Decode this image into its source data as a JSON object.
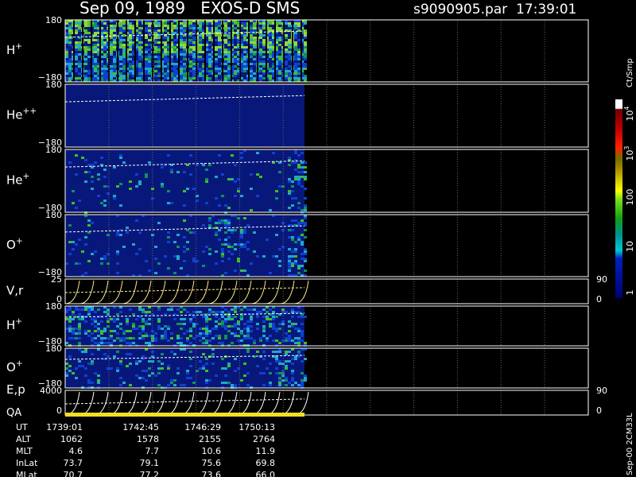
{
  "header": {
    "left": "Sep 09, 1989   EXOS-D SMS",
    "right": "s9090905.par  17:39:01"
  },
  "panels": [
    {
      "label": {
        "base": "H",
        "sup": "+"
      },
      "top": "180",
      "bottom": "−180"
    },
    {
      "label": {
        "base": "He",
        "sup": "++"
      },
      "top": "180",
      "bottom": "−180"
    },
    {
      "label": {
        "base": "He",
        "sup": "+"
      },
      "top": "180",
      "bottom": "−180"
    },
    {
      "label": {
        "base": "O",
        "sup": "+"
      },
      "top": "180",
      "bottom": "−180"
    },
    {
      "label": {
        "base": "V,r"
      },
      "top": "25",
      "bottom": "0",
      "right_top": "90",
      "right_bottom": "0"
    },
    {
      "label": {
        "base": "H",
        "sup": "+"
      },
      "top": "180",
      "bottom": "−180"
    },
    {
      "label": {
        "base": "O",
        "sup": "+"
      },
      "top": "180",
      "bottom": "−180"
    },
    {
      "label": {
        "base": "E,p"
      },
      "label2": "QA",
      "top": "4000",
      "bottom": "0",
      "right_top": "90",
      "right_bottom": "0"
    }
  ],
  "colorbar": {
    "unit": "Ct/Smp",
    "ticks": [
      {
        "base": "10",
        "sup": "4"
      },
      {
        "base": "10",
        "sup": "3"
      },
      {
        "base": "100"
      },
      {
        "base": "10"
      },
      {
        "base": "1"
      }
    ]
  },
  "footer": {
    "rows": [
      {
        "label": "UT",
        "values": [
          "1739:01",
          "1742:45",
          "1746:29",
          "1750:13"
        ]
      },
      {
        "label": "ALT",
        "values": [
          "1062",
          "1578",
          "2155",
          "2764"
        ]
      },
      {
        "label": "MLT",
        "values": [
          "4.6",
          "7.7",
          "10.6",
          "11.9"
        ]
      },
      {
        "label": "InLat",
        "values": [
          "73.7",
          "79.1",
          "75.6",
          "69.8"
        ]
      },
      {
        "label": "MLat",
        "values": [
          "70.7",
          "77.2",
          "73.6",
          "66.0"
        ]
      }
    ]
  },
  "stamp": "Sep-00 2CM33L"
}
